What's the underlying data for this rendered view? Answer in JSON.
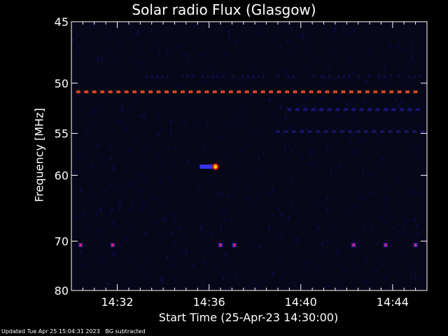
{
  "chart_data": {
    "type": "heatmap",
    "title": "Solar radio Flux (Glasgow)",
    "xlabel": "Start Time (25-Apr-23 14:30:00)",
    "ylabel": "Frequency [MHz]",
    "x_unit": "minutes",
    "xlim": [
      0,
      15.5
    ],
    "ylim": [
      45,
      80
    ],
    "y_scale": "reciprocal",
    "x_ticks": [
      {
        "value": 2,
        "label": "14:32"
      },
      {
        "value": 6,
        "label": "14:36"
      },
      {
        "value": 10,
        "label": "14:40"
      },
      {
        "value": 14,
        "label": "14:44"
      }
    ],
    "y_ticks": [
      {
        "value": 45,
        "label": "45"
      },
      {
        "value": 50,
        "label": "50"
      },
      {
        "value": 55,
        "label": "55"
      },
      {
        "value": 60,
        "label": "60"
      },
      {
        "value": 70,
        "label": "70"
      },
      {
        "value": 80,
        "label": "80"
      }
    ],
    "background_color": "#07071a",
    "features": [
      {
        "name": "interference-51mhz",
        "freq": 50.8,
        "start": 0.3,
        "end": 15.3,
        "intensity": 0.8,
        "style": "dashed",
        "color": "#ff5a1e"
      },
      {
        "name": "band-52.5mhz",
        "freq": 52.5,
        "start": 9.5,
        "end": 15.3,
        "intensity": 0.45,
        "style": "dashed",
        "color": "#2a2ae0"
      },
      {
        "name": "band-55mhz",
        "freq": 54.8,
        "start": 9.0,
        "end": 15.3,
        "intensity": 0.35,
        "style": "dashed",
        "color": "#2a2ae0"
      },
      {
        "name": "band-49mhz",
        "freq": 49.4,
        "start": 3.3,
        "end": 15.3,
        "intensity": 0.3,
        "style": "sparse",
        "color": "#2020b0"
      },
      {
        "name": "burst-59mhz",
        "freq": 58.9,
        "start": 5.6,
        "end": 6.4,
        "intensity": 1.0,
        "style": "burst",
        "color": "#ff2020"
      },
      {
        "name": "spikes-70.5mhz",
        "freq": 70.7,
        "times": [
          0.4,
          1.8,
          6.5,
          7.1,
          12.3,
          13.7,
          15.0
        ],
        "intensity": 0.9,
        "style": "spikes",
        "color": "#ff2040"
      }
    ]
  },
  "footer": {
    "updated": "Updated Tue Apr 25 15:04:31 2023",
    "note": "BG subtracted"
  }
}
